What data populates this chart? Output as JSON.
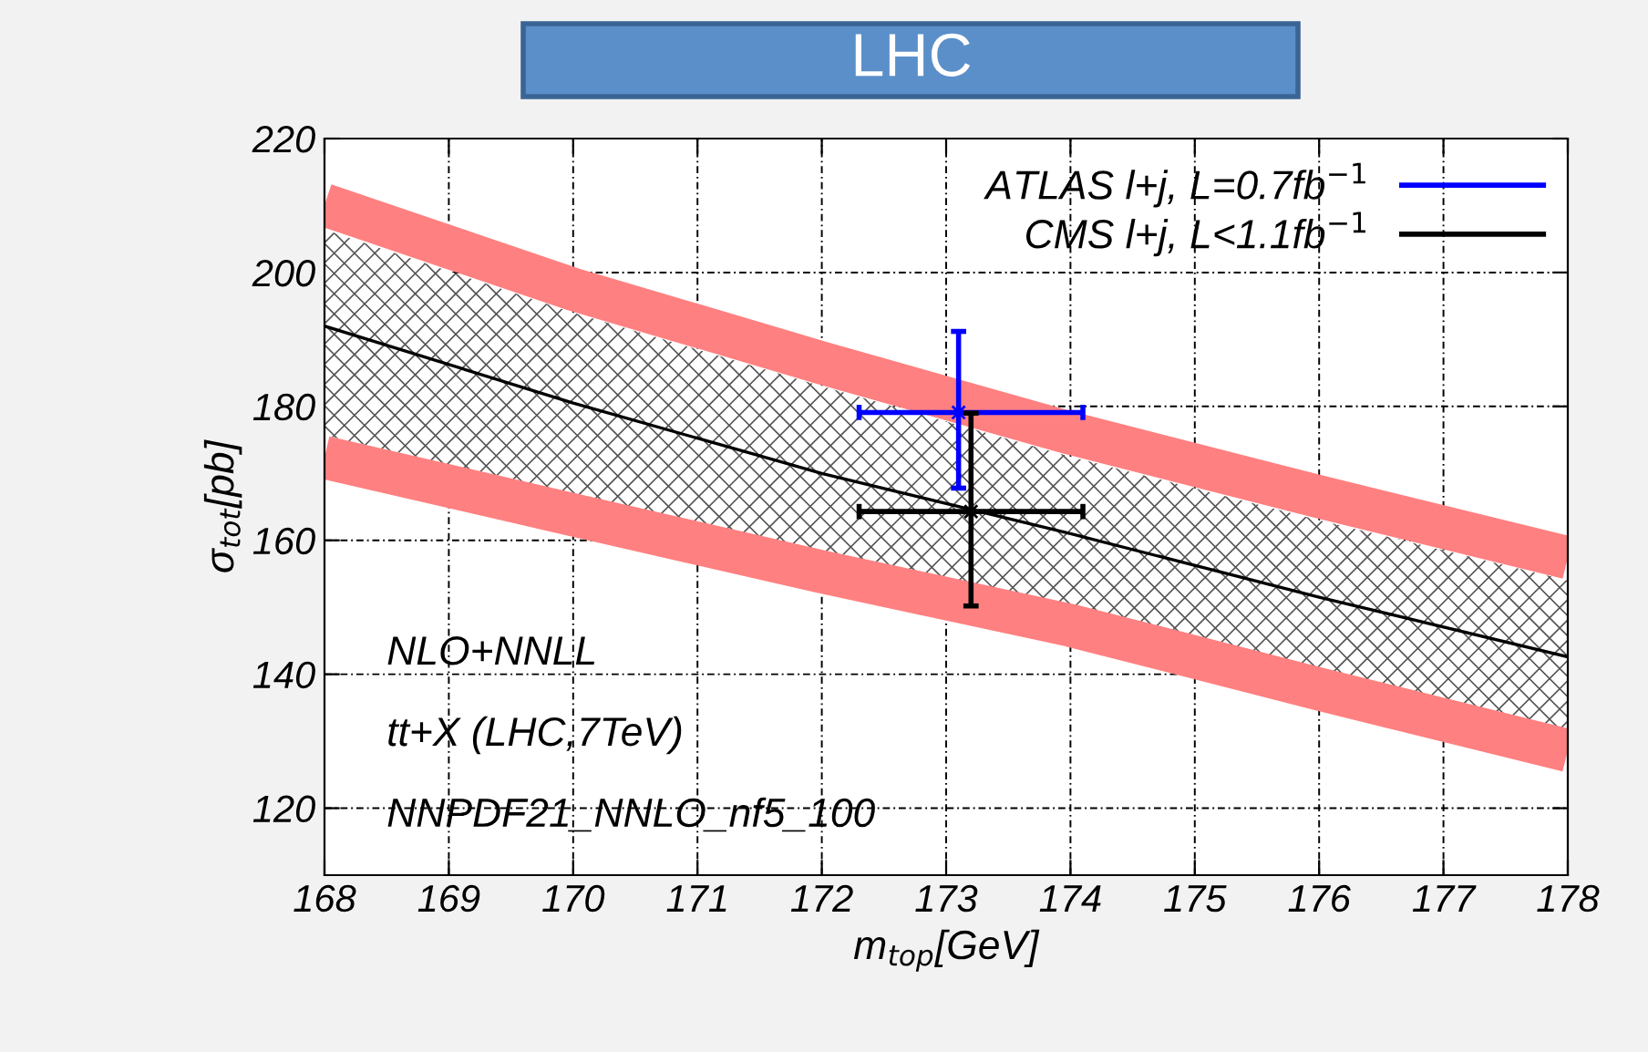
{
  "chart_data": {
    "type": "line",
    "title": "LHC",
    "xlabel": "m$_{top}$[GeV]",
    "ylabel": "σ$_{tot}$[pb]",
    "xlim": [
      168,
      178
    ],
    "ylim": [
      110,
      220
    ],
    "xticks": [
      168,
      169,
      170,
      171,
      172,
      173,
      174,
      175,
      176,
      177,
      178
    ],
    "yticks": [
      120,
      140,
      160,
      180,
      200,
      220
    ],
    "grid": true,
    "legend": "top right",
    "series": [
      {
        "type": "line",
        "color": "#ff8080",
        "x": [
          168,
          170,
          172,
          174,
          176,
          178
        ],
        "values": [
          210.1,
          197.5,
          186.5,
          176,
          166.5,
          157.4
        ]
      },
      {
        "type": "line",
        "color": "#ff8080",
        "x": [
          168,
          170,
          172,
          174,
          176,
          178
        ],
        "values": [
          172.4,
          163.8,
          155.3,
          147.3,
          137.8,
          128.6
        ]
      },
      {
        "color": "#000000",
        "x": [
          168,
          170,
          172,
          174,
          176,
          178
        ],
        "values": [
          192,
          180.5,
          170,
          161,
          151.5,
          142.6
        ],
        "lower": [
          175.7,
          167,
          158.5,
          150.5,
          141,
          131.7
        ],
        "upper": [
          206.4,
          194,
          183,
          172.5,
          163,
          154
        ]
      },
      {
        "type": "scatter",
        "name": "ATLAS l+j, L=0.7fb$^{−1}$",
        "color": "#0000ff",
        "x": [
          173.1
        ],
        "values": [
          179.1
        ],
        "errors": [
          [
            167.8,
            191.2
          ]
        ],
        "xerrors": [
          [
            172.3,
            174.1
          ]
        ],
        "marker": "cross"
      },
      {
        "type": "scatter",
        "name": "CMS l+j, L<1.1fb$^{−1}$",
        "color": "#000000",
        "x": [
          173.2
        ],
        "values": [
          164.3
        ],
        "errors": [
          [
            150.2,
            179
          ]
        ],
        "xerrors": [
          [
            172.3,
            174.1
          ]
        ],
        "marker": "cross"
      }
    ],
    "annotations": [
      "NLO+NNLL",
      "tt+X (LHC,7TeV)",
      "NNPDF21_NNLO_nf5_100"
    ]
  }
}
